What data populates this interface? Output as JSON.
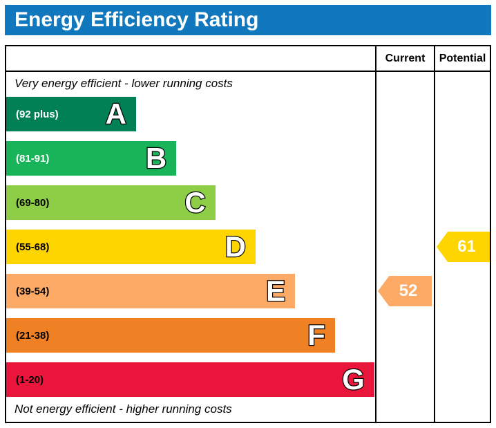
{
  "title": "Energy Efficiency Rating",
  "header": {
    "current": "Current",
    "potential": "Potential"
  },
  "captions": {
    "top": "Very energy efficient - lower running costs",
    "bottom": "Not energy efficient - higher running costs"
  },
  "colors": {
    "title_bar_bg": "#1278be",
    "title_bar_text": "#ffffff",
    "border": "#000000"
  },
  "chart_data": {
    "type": "bar",
    "title": "Energy Efficiency Rating",
    "scale_min": 1,
    "scale_max": 100,
    "bands": [
      {
        "letter": "A",
        "range": "(92 plus)",
        "color": "#008054",
        "label_color": "#ffffff",
        "width_pct": 35.2
      },
      {
        "letter": "B",
        "range": "(81-91)",
        "color": "#19b459",
        "label_color": "#ffffff",
        "width_pct": 46.1
      },
      {
        "letter": "C",
        "range": "(69-80)",
        "color": "#8dce46",
        "label_color": "#000000",
        "width_pct": 56.7
      },
      {
        "letter": "D",
        "range": "(55-68)",
        "color": "#ffd500",
        "label_color": "#000000",
        "width_pct": 67.6
      },
      {
        "letter": "E",
        "range": "(39-54)",
        "color": "#fcaa65",
        "label_color": "#000000",
        "width_pct": 78.3
      },
      {
        "letter": "F",
        "range": "(21-38)",
        "color": "#ef8023",
        "label_color": "#000000",
        "width_pct": 89.1
      },
      {
        "letter": "G",
        "range": "(1-20)",
        "color": "#e9153b",
        "label_color": "#000000",
        "width_pct": 99.8
      }
    ],
    "current": {
      "label": "Current",
      "value": 52,
      "band": "E",
      "color": "#fcaa65"
    },
    "potential": {
      "label": "Potential",
      "value": 61,
      "band": "D",
      "color": "#ffd500"
    }
  }
}
